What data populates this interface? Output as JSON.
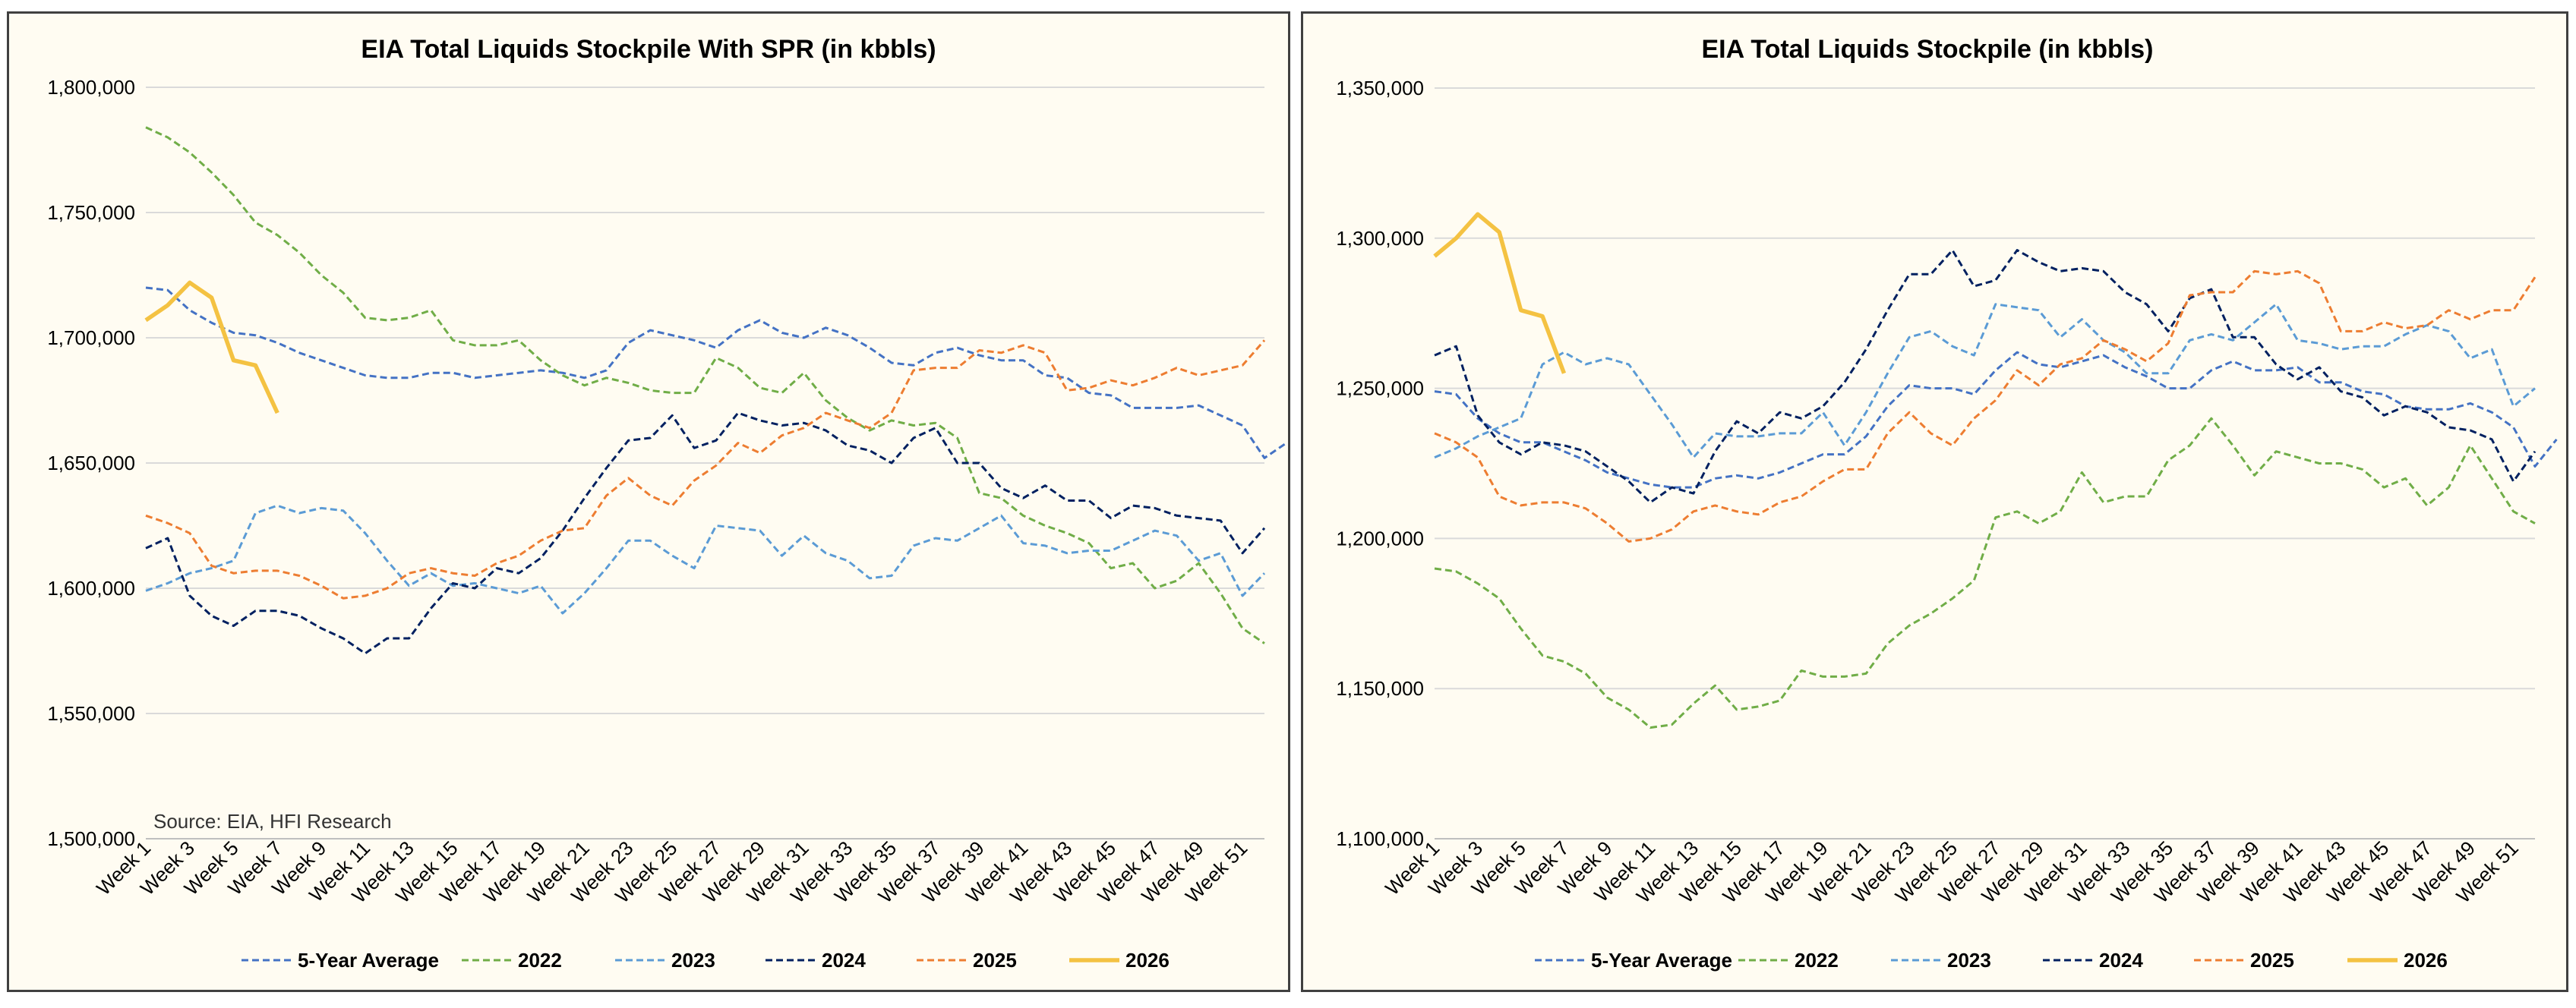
{
  "chart_data": [
    {
      "type": "line",
      "title": "EIA Total Liquids Stockpile With SPR (in kbbls)",
      "source": "Source: EIA, HFI Research",
      "xlabel": "",
      "ylabel": "",
      "ylim": [
        1500000,
        1800000
      ],
      "yticks": [
        1500000,
        1550000,
        1600000,
        1650000,
        1700000,
        1750000,
        1800000
      ],
      "ytick_labels": [
        "1,500,000",
        "1,550,000",
        "1,600,000",
        "1,650,000",
        "1,700,000",
        "1,750,000",
        "1,800,000"
      ],
      "x_labels": [
        "Week 1",
        "Week 3",
        "Week 5",
        "Week 7",
        "Week 9",
        "Week 11",
        "Week 13",
        "Week 15",
        "Week 17",
        "Week 19",
        "Week 21",
        "Week 23",
        "Week 25",
        "Week 27",
        "Week 29",
        "Week 31",
        "Week 33",
        "Week 35",
        "Week 37",
        "Week 39",
        "Week 41",
        "Week 43",
        "Week 45",
        "Week 47",
        "Week 49",
        "Week 51"
      ],
      "grid": "horizontal",
      "legend_position": "bottom",
      "series": [
        {
          "name": "5-Year Average",
          "color": "#4472c4",
          "dash": "dashed",
          "values": [
            1720000,
            1719000,
            1711000,
            1706000,
            1702000,
            1701000,
            1698000,
            1694000,
            1691000,
            1688000,
            1685000,
            1684000,
            1684000,
            1686000,
            1686000,
            1684000,
            1685000,
            1686000,
            1687000,
            1686000,
            1684000,
            1687000,
            1698000,
            1703000,
            1701000,
            1699000,
            1696000,
            1703000,
            1707000,
            1702000,
            1700000,
            1704000,
            1701000,
            1696000,
            1690000,
            1689000,
            1694000,
            1696000,
            1693000,
            1691000,
            1691000,
            1685000,
            1684000,
            1678000,
            1677000,
            1672000,
            1672000,
            1672000,
            1673000,
            1669000,
            1665000,
            1652000,
            1658000
          ]
        },
        {
          "name": "2022",
          "color": "#70ad47",
          "dash": "dashed",
          "values": [
            1784000,
            1780000,
            1774000,
            1766000,
            1757000,
            1746000,
            1741000,
            1734000,
            1725000,
            1718000,
            1708000,
            1707000,
            1708000,
            1711000,
            1699000,
            1697000,
            1697000,
            1699000,
            1691000,
            1685000,
            1681000,
            1684000,
            1682000,
            1679000,
            1678000,
            1678000,
            1692000,
            1688000,
            1680000,
            1678000,
            1686000,
            1675000,
            1668000,
            1663000,
            1667000,
            1665000,
            1666000,
            1660000,
            1638000,
            1636000,
            1629000,
            1625000,
            1622000,
            1618000,
            1608000,
            1610000,
            1600000,
            1603000,
            1610000,
            1598000,
            1584000,
            1578000
          ]
        },
        {
          "name": "2023",
          "color": "#5b9bd5",
          "dash": "dashed",
          "values": [
            1599000,
            1602000,
            1606000,
            1608000,
            1611000,
            1630000,
            1633000,
            1630000,
            1632000,
            1631000,
            1622000,
            1611000,
            1601000,
            1606000,
            1601000,
            1602000,
            1600000,
            1598000,
            1601000,
            1590000,
            1598000,
            1608000,
            1619000,
            1619000,
            1613000,
            1608000,
            1625000,
            1624000,
            1623000,
            1613000,
            1621000,
            1614000,
            1611000,
            1604000,
            1605000,
            1617000,
            1620000,
            1619000,
            1624000,
            1629000,
            1618000,
            1617000,
            1614000,
            1615000,
            1615000,
            1619000,
            1623000,
            1621000,
            1611000,
            1614000,
            1597000,
            1606000
          ]
        },
        {
          "name": "2024",
          "color": "#002060",
          "dash": "dashed",
          "values": [
            1616000,
            1620000,
            1597000,
            1589000,
            1585000,
            1591000,
            1591000,
            1589000,
            1584000,
            1580000,
            1574000,
            1580000,
            1580000,
            1592000,
            1602000,
            1600000,
            1608000,
            1606000,
            1612000,
            1623000,
            1636000,
            1648000,
            1659000,
            1660000,
            1669000,
            1656000,
            1659000,
            1670000,
            1667000,
            1665000,
            1666000,
            1663000,
            1657000,
            1655000,
            1650000,
            1660000,
            1664000,
            1650000,
            1650000,
            1640000,
            1636000,
            1641000,
            1635000,
            1635000,
            1628000,
            1633000,
            1632000,
            1629000,
            1628000,
            1627000,
            1614000,
            1624000
          ]
        },
        {
          "name": "2025",
          "color": "#ed7d31",
          "dash": "dashed",
          "values": [
            1629000,
            1626000,
            1622000,
            1609000,
            1606000,
            1607000,
            1607000,
            1605000,
            1601000,
            1596000,
            1597000,
            1600000,
            1606000,
            1608000,
            1606000,
            1605000,
            1610000,
            1613000,
            1619000,
            1623000,
            1624000,
            1637000,
            1644000,
            1637000,
            1633000,
            1643000,
            1649000,
            1658000,
            1654000,
            1661000,
            1664000,
            1670000,
            1667000,
            1664000,
            1670000,
            1687000,
            1688000,
            1688000,
            1695000,
            1694000,
            1697000,
            1694000,
            1679000,
            1680000,
            1683000,
            1681000,
            1684000,
            1688000,
            1685000,
            1687000,
            1689000,
            1699000
          ]
        },
        {
          "name": "2026",
          "color": "#f4c242",
          "dash": "solid",
          "values": [
            1707000,
            1713000,
            1722000,
            1716000,
            1691000,
            1689000,
            1670000
          ]
        }
      ]
    },
    {
      "type": "line",
      "title": "EIA Total Liquids Stockpile (in kbbls)",
      "xlabel": "",
      "ylabel": "",
      "ylim": [
        1100000,
        1350000
      ],
      "yticks": [
        1100000,
        1150000,
        1200000,
        1250000,
        1300000,
        1350000
      ],
      "ytick_labels": [
        "1,100,000",
        "1,150,000",
        "1,200,000",
        "1,250,000",
        "1,300,000",
        "1,350,000"
      ],
      "x_labels": [
        "Week 1",
        "Week 3",
        "Week 5",
        "Week 7",
        "Week 9",
        "Week 11",
        "Week 13",
        "Week 15",
        "Week 17",
        "Week 19",
        "Week 21",
        "Week 23",
        "Week 25",
        "Week 27",
        "Week 29",
        "Week 31",
        "Week 33",
        "Week 35",
        "Week 37",
        "Week 39",
        "Week 41",
        "Week 43",
        "Week 45",
        "Week 47",
        "Week 49",
        "Week 51"
      ],
      "grid": "horizontal",
      "legend_position": "bottom",
      "series": [
        {
          "name": "5-Year Average",
          "color": "#4472c4",
          "dash": "dashed",
          "values": [
            1249000,
            1248000,
            1240000,
            1235000,
            1232000,
            1232000,
            1229000,
            1226000,
            1222000,
            1220000,
            1218000,
            1217000,
            1217000,
            1220000,
            1221000,
            1220000,
            1222000,
            1225000,
            1228000,
            1228000,
            1234000,
            1244000,
            1251000,
            1250000,
            1250000,
            1248000,
            1256000,
            1262000,
            1258000,
            1257000,
            1259000,
            1261000,
            1257000,
            1254000,
            1250000,
            1250000,
            1256000,
            1259000,
            1256000,
            1256000,
            1257000,
            1252000,
            1252000,
            1249000,
            1248000,
            1244000,
            1243000,
            1243000,
            1245000,
            1242000,
            1237000,
            1224000,
            1233000
          ]
        },
        {
          "name": "2022",
          "color": "#70ad47",
          "dash": "dashed",
          "values": [
            1190000,
            1189000,
            1185000,
            1180000,
            1170000,
            1161000,
            1159000,
            1155000,
            1147000,
            1143000,
            1137000,
            1138000,
            1145000,
            1151000,
            1143000,
            1144000,
            1146000,
            1156000,
            1154000,
            1154000,
            1155000,
            1165000,
            1171000,
            1175000,
            1180000,
            1186000,
            1207000,
            1209000,
            1205000,
            1209000,
            1222000,
            1212000,
            1214000,
            1214000,
            1226000,
            1231000,
            1240000,
            1231000,
            1221000,
            1229000,
            1227000,
            1225000,
            1225000,
            1223000,
            1217000,
            1220000,
            1211000,
            1217000,
            1231000,
            1220000,
            1209000,
            1205000
          ]
        },
        {
          "name": "2023",
          "color": "#5b9bd5",
          "dash": "dashed",
          "values": [
            1227000,
            1230000,
            1234000,
            1237000,
            1240000,
            1258000,
            1262000,
            1258000,
            1260000,
            1258000,
            1248000,
            1238000,
            1227000,
            1235000,
            1234000,
            1234000,
            1235000,
            1235000,
            1242000,
            1231000,
            1242000,
            1255000,
            1267000,
            1269000,
            1264000,
            1261000,
            1278000,
            1277000,
            1276000,
            1267000,
            1273000,
            1266000,
            1262000,
            1255000,
            1255000,
            1266000,
            1268000,
            1266000,
            1272000,
            1278000,
            1266000,
            1265000,
            1263000,
            1264000,
            1264000,
            1268000,
            1271000,
            1269000,
            1260000,
            1263000,
            1244000,
            1250000
          ]
        },
        {
          "name": "2024",
          "color": "#002060",
          "dash": "dashed",
          "values": [
            1261000,
            1264000,
            1241000,
            1232000,
            1228000,
            1232000,
            1231000,
            1229000,
            1224000,
            1219000,
            1212000,
            1217000,
            1215000,
            1229000,
            1239000,
            1235000,
            1242000,
            1240000,
            1244000,
            1252000,
            1263000,
            1276000,
            1288000,
            1288000,
            1296000,
            1284000,
            1286000,
            1296000,
            1292000,
            1289000,
            1290000,
            1289000,
            1282000,
            1278000,
            1269000,
            1280000,
            1283000,
            1267000,
            1267000,
            1258000,
            1253000,
            1257000,
            1249000,
            1247000,
            1241000,
            1244000,
            1242000,
            1237000,
            1236000,
            1233000,
            1219000,
            1229000
          ]
        },
        {
          "name": "2025",
          "color": "#ed7d31",
          "dash": "dashed",
          "values": [
            1235000,
            1232000,
            1227000,
            1214000,
            1211000,
            1212000,
            1212000,
            1210000,
            1205000,
            1199000,
            1200000,
            1203000,
            1209000,
            1211000,
            1209000,
            1208000,
            1212000,
            1214000,
            1219000,
            1223000,
            1223000,
            1235000,
            1242000,
            1235000,
            1231000,
            1240000,
            1246000,
            1256000,
            1251000,
            1258000,
            1260000,
            1266000,
            1263000,
            1259000,
            1265000,
            1281000,
            1282000,
            1282000,
            1289000,
            1288000,
            1289000,
            1285000,
            1269000,
            1269000,
            1272000,
            1270000,
            1271000,
            1276000,
            1273000,
            1276000,
            1276000,
            1287000
          ]
        },
        {
          "name": "2026",
          "color": "#f4c242",
          "dash": "solid",
          "values": [
            1294000,
            1300000,
            1308000,
            1302000,
            1276000,
            1274000,
            1255000
          ]
        }
      ]
    }
  ]
}
